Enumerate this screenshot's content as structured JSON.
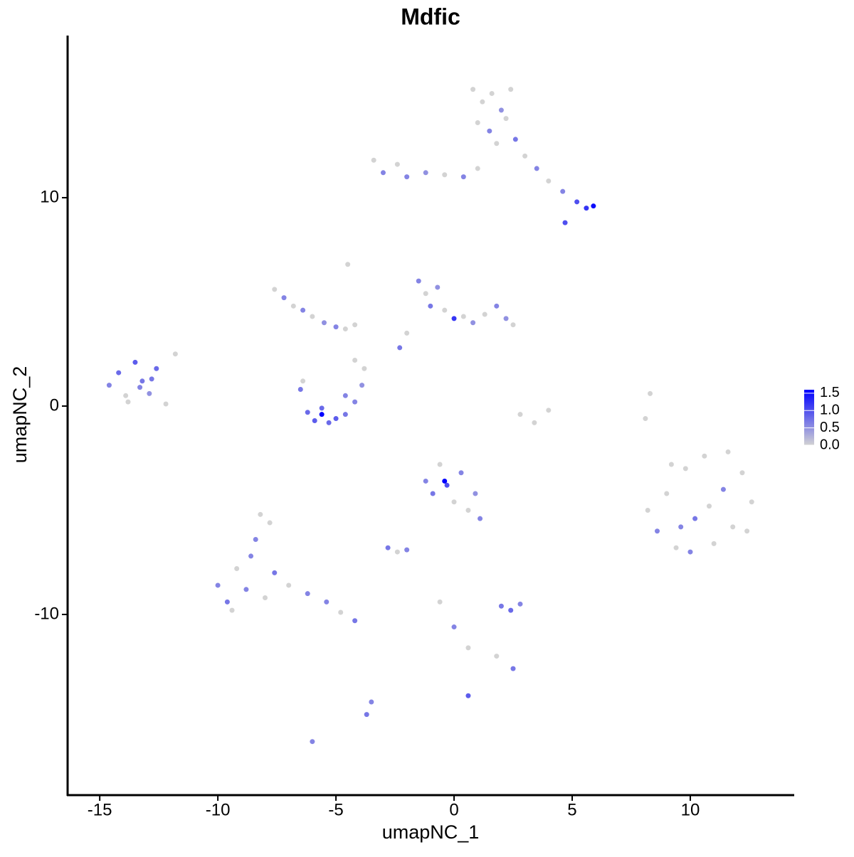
{
  "chart_data": {
    "type": "scatter",
    "title": "Mdfic",
    "x_label": "umapNC_1",
    "y_label": "umapNC_2",
    "xlim": [
      -16.36,
      14.37
    ],
    "ylim": [
      -18.67,
      17.78
    ],
    "xticks": [
      -15,
      -10,
      -5,
      0,
      5,
      10
    ],
    "yticks": [
      -10,
      0,
      10
    ],
    "x": [
      -14.6,
      -14.2,
      -13.9,
      -13.5,
      -13.2,
      -12.9,
      -12.6,
      -13.8,
      -13.3,
      -12.8,
      -12.2,
      -11.8,
      -6.5,
      -6.2,
      -5.9,
      -5.6,
      -5.3,
      -5.0,
      -4.6,
      -4.2,
      -3.9,
      -3.8,
      -4.2,
      -6.4,
      -5.6,
      -4.6,
      -7.6,
      -7.2,
      -6.8,
      -6.4,
      -6.0,
      -5.5,
      -5.0,
      -4.6,
      -4.2,
      -4.5,
      -1.5,
      -1.2,
      -1.0,
      -0.7,
      -0.4,
      0,
      0.4,
      0.8,
      1.3,
      1.8,
      2.2,
      2.5,
      -2.3,
      -2.0,
      0.8,
      1.2,
      1.6,
      2.0,
      2.4,
      1.0,
      1.5,
      2.2,
      2.6,
      1.8,
      3.0,
      3.5,
      4.0,
      4.6,
      5.2,
      5.6,
      5.9,
      4.7,
      -3.4,
      -3.0,
      -2.4,
      -2.0,
      -1.2,
      -0.4,
      0.4,
      1.0,
      8.2,
      8.6,
      9.0,
      9.4,
      9.8,
      10.2,
      10.6,
      11.0,
      11.4,
      11.8,
      12.2,
      12.6,
      9.2,
      10.0,
      10.8,
      11.6,
      9.6,
      12.4,
      -10.0,
      -9.6,
      -9.2,
      -8.8,
      -8.4,
      -8.0,
      -7.6,
      -9.4,
      -8.6,
      -7.8,
      -7.0,
      -6.2,
      -5.4,
      -4.8,
      -4.2,
      -8.2,
      -1.2,
      -0.9,
      -0.6,
      -0.3,
      0,
      0.3,
      0.6,
      0.9,
      1.1,
      -0.4,
      2.0,
      2.4,
      2.8,
      -2.8,
      -2.4,
      -2.0,
      2.8,
      3.4,
      4.0,
      -3.7,
      -3.5,
      -0.6,
      0.0,
      0.6,
      1.8,
      2.5,
      8.1,
      8.3,
      0.6,
      -6.0
    ],
    "y": [
      1.0,
      1.6,
      0.5,
      2.1,
      1.2,
      0.6,
      1.8,
      0.2,
      0.9,
      1.3,
      0.1,
      2.5,
      0.8,
      -0.3,
      -0.7,
      -0.4,
      -0.8,
      -0.6,
      -0.4,
      0.2,
      1.0,
      1.8,
      2.2,
      1.2,
      -0.1,
      0.5,
      5.6,
      5.2,
      4.8,
      4.6,
      4.3,
      4.0,
      3.8,
      3.7,
      3.9,
      6.8,
      6.0,
      5.4,
      4.8,
      5.7,
      4.6,
      4.2,
      4.3,
      4.0,
      4.4,
      4.8,
      4.2,
      3.9,
      2.8,
      3.5,
      15.2,
      14.6,
      15.0,
      14.2,
      15.2,
      13.6,
      13.2,
      13.8,
      12.8,
      12.6,
      12.0,
      11.4,
      10.8,
      10.3,
      9.8,
      9.5,
      9.6,
      8.8,
      11.8,
      11.2,
      11.6,
      11.0,
      11.2,
      11.1,
      11.0,
      11.4,
      -5.0,
      -6.0,
      -4.2,
      -6.8,
      -3.0,
      -5.4,
      -2.4,
      -6.6,
      -4.0,
      -5.8,
      -3.2,
      -4.6,
      -2.8,
      -7.0,
      -4.8,
      -2.2,
      -5.8,
      -6.0,
      -8.6,
      -9.4,
      -7.8,
      -8.8,
      -6.4,
      -9.2,
      -8.0,
      -9.8,
      -7.2,
      -5.6,
      -8.6,
      -9.0,
      -9.4,
      -9.9,
      -10.3,
      -5.2,
      -3.6,
      -4.2,
      -2.8,
      -3.8,
      -4.6,
      -3.2,
      -5.0,
      -4.2,
      -5.4,
      -3.6,
      -9.6,
      -9.8,
      -9.5,
      -6.8,
      -7.0,
      -6.9,
      -0.4,
      -0.8,
      -0.2,
      -14.8,
      -14.2,
      -9.4,
      -10.6,
      -11.6,
      -12.0,
      -12.6,
      -0.6,
      0.6,
      -13.9,
      -16.1
    ],
    "values": [
      0.6,
      0.8,
      0,
      0.9,
      0.7,
      0.5,
      0.8,
      0,
      0.6,
      0.7,
      0,
      0,
      0.7,
      0.8,
      0.9,
      1.6,
      0.8,
      0.9,
      0.7,
      0.6,
      0.5,
      0,
      0,
      0,
      0.8,
      0.6,
      0,
      0.6,
      0,
      0.6,
      0,
      0.5,
      0.6,
      0,
      0,
      0,
      0.6,
      0,
      0.7,
      0.5,
      0,
      1.2,
      0,
      0.5,
      0,
      0.6,
      0.5,
      0,
      0.7,
      0,
      0,
      0,
      0,
      0.5,
      0,
      0,
      0.6,
      0,
      0.7,
      0,
      0,
      0.6,
      0,
      0.6,
      1.0,
      1.2,
      1.5,
      1.0,
      0,
      0.6,
      0,
      0.6,
      0.5,
      0,
      0.6,
      0,
      0,
      0.6,
      0,
      0,
      0,
      0.7,
      0,
      0,
      0.6,
      0,
      0,
      0,
      0,
      0.6,
      0,
      0,
      0.6,
      0,
      0.6,
      0.7,
      0,
      0.6,
      0.6,
      0,
      0.7,
      0,
      0.6,
      0,
      0,
      0.6,
      0.6,
      0,
      0.7,
      0,
      0.6,
      0.7,
      0,
      1.0,
      0,
      0.6,
      0,
      0.5,
      0.6,
      1.6,
      0.7,
      0.8,
      0.6,
      0.7,
      0,
      0.6,
      0,
      0,
      0,
      0.7,
      0.6,
      0,
      0.6,
      0,
      0,
      0.7,
      0,
      0,
      0.9,
      0.6
    ],
    "color_scale": {
      "colors": [
        "#d3d3d3",
        "#0000ff"
      ],
      "lim": [
        0,
        1.6
      ],
      "ticks": [
        {
          "value": 0,
          "label": "0.0"
        },
        {
          "value": 0.5,
          "label": "0.5"
        },
        {
          "value": 1,
          "label": "1.0"
        },
        {
          "value": 1.5,
          "label": "1.5"
        }
      ]
    }
  }
}
